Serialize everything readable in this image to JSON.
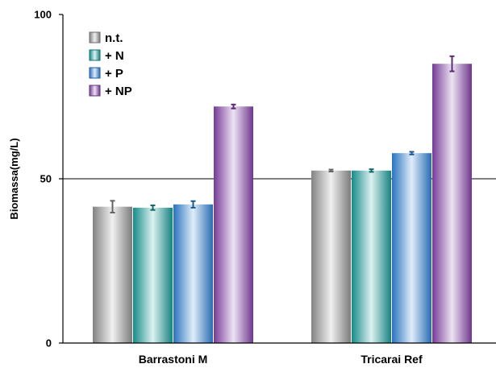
{
  "chart_data": {
    "type": "bar",
    "title": "",
    "xlabel": "",
    "ylabel": "Biomassa(mg/L)",
    "ylim": [
      0,
      100
    ],
    "yticks": [
      "0",
      "50",
      "100"
    ],
    "categories": [
      "Barrastoni M",
      "Tricarai Ref"
    ],
    "legend_position": "top-left",
    "grid": "horizontal line at 50",
    "series": [
      {
        "name": "n.t.",
        "color": "#9a9a9a",
        "values": [
          41.5,
          52.5
        ],
        "errors": [
          1.8,
          0.3
        ]
      },
      {
        "name": "+ N",
        "color": "#1aa3a0",
        "values": [
          41.2,
          52.5
        ],
        "errors": [
          0.7,
          0.4
        ]
      },
      {
        "name": "+ P",
        "color": "#2f86e0",
        "values": [
          42.2,
          57.8
        ],
        "errors": [
          1.0,
          0.4
        ]
      },
      {
        "name": "+ NP",
        "color": "#8a45b0",
        "values": [
          72.0,
          85.0
        ],
        "errors": [
          0.6,
          2.3
        ]
      }
    ]
  }
}
